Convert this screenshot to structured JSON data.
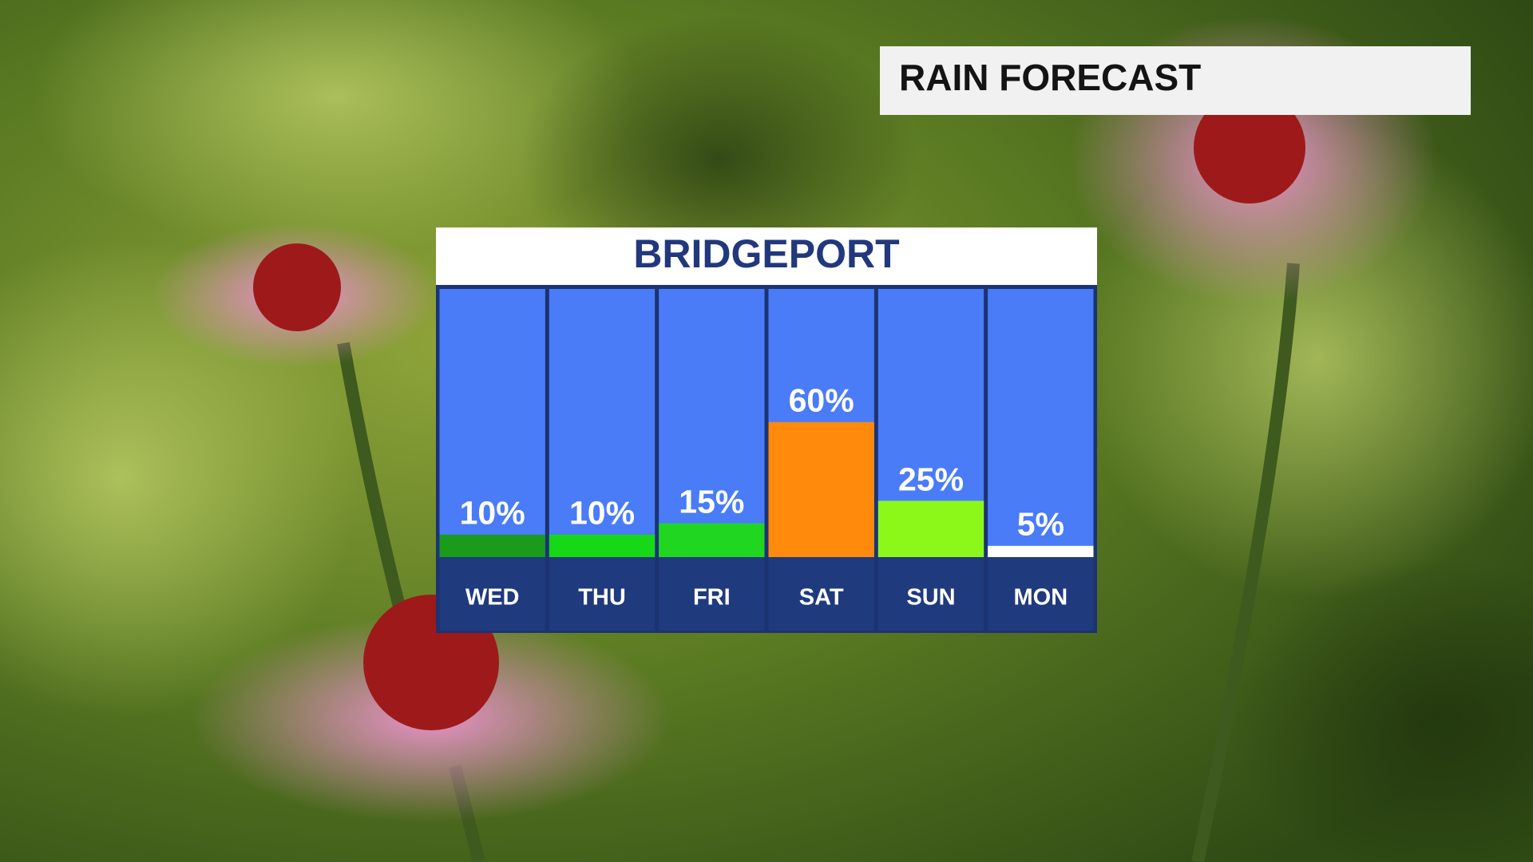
{
  "chart_data": {
    "type": "bar",
    "title": "RAIN FORECAST",
    "subtitle": "BRIDGEPORT",
    "categories": [
      "WED",
      "THU",
      "FRI",
      "SAT",
      "SUN",
      "MON"
    ],
    "values": [
      10,
      10,
      15,
      60,
      25,
      5
    ],
    "value_labels": [
      "10%",
      "10%",
      "15%",
      "60%",
      "25%",
      "5%"
    ],
    "colors": [
      "#1a9b1c",
      "#16d816",
      "#21d621",
      "#ff8a0c",
      "#8cf81a",
      "#ffffff"
    ]
  }
}
